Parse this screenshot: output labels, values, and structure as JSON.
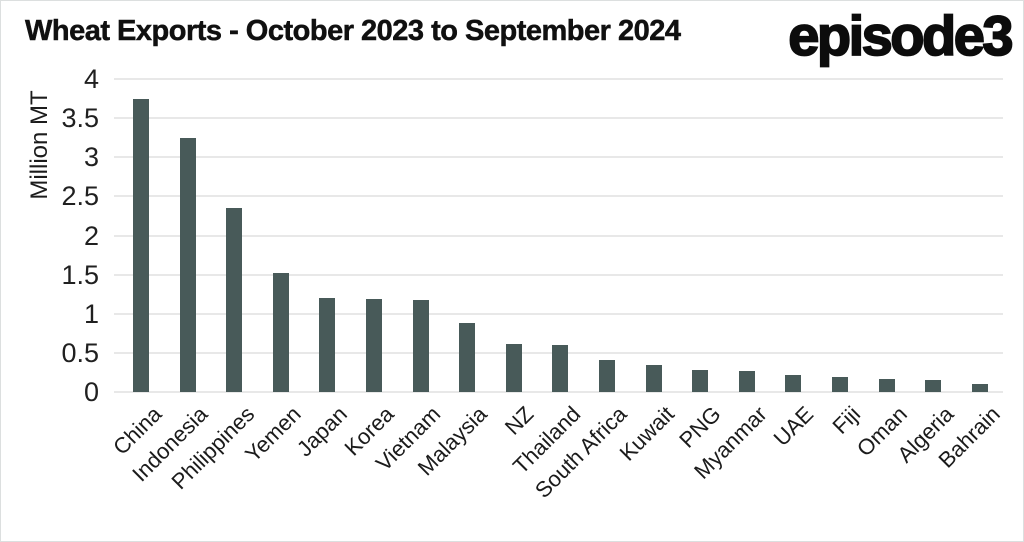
{
  "header": {
    "logo_text": "episode3"
  },
  "chart_data": {
    "type": "bar",
    "title": "Wheat Exports - October 2023 to September 2024",
    "ylabel": "Million MT",
    "xlabel": "",
    "ylim": [
      0,
      4
    ],
    "yticks": [
      0,
      0.5,
      1,
      1.5,
      2,
      2.5,
      3,
      3.5,
      4
    ],
    "grid": true,
    "legend": false,
    "bar_color": "#485a59",
    "gridline_color": "#e8e8e8",
    "categories": [
      "China",
      "Indonesia",
      "Philippines",
      "Yemen",
      "Japan",
      "Korea",
      "Vietnam",
      "Malaysia",
      "NZ",
      "Thailand",
      "South Africa",
      "Kuwait",
      "PNG",
      "Myanmar",
      "UAE",
      "Fiji",
      "Oman",
      "Algeria",
      "Bahrain"
    ],
    "values": [
      3.75,
      3.24,
      2.35,
      1.52,
      1.2,
      1.19,
      1.18,
      0.88,
      0.62,
      0.6,
      0.41,
      0.34,
      0.28,
      0.27,
      0.22,
      0.19,
      0.17,
      0.15,
      0.1
    ]
  }
}
